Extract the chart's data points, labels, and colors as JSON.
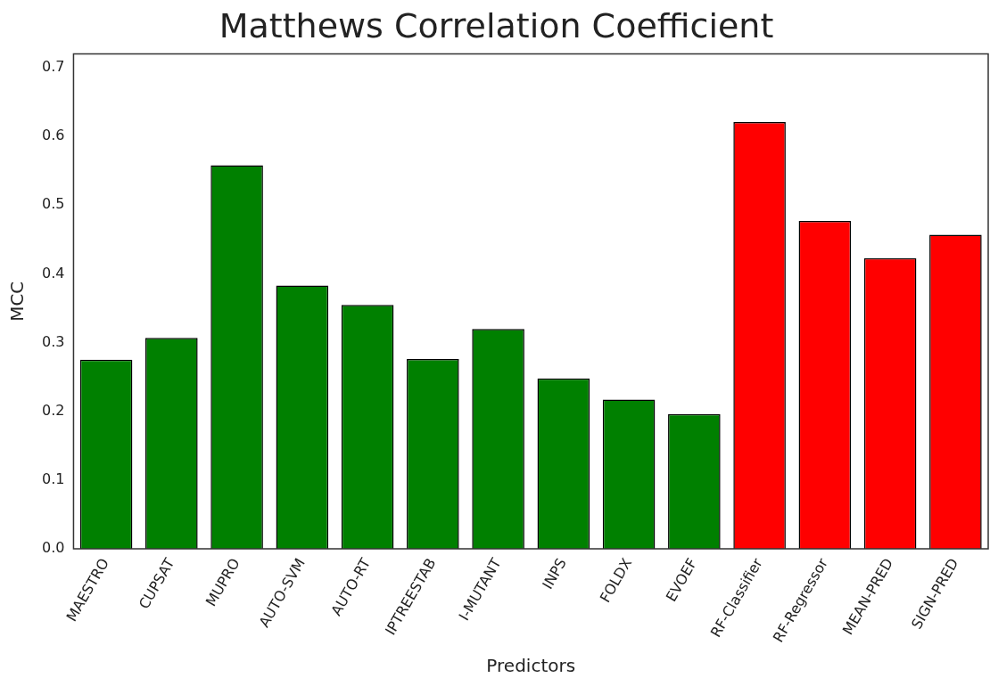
{
  "chart_data": {
    "type": "bar",
    "title": "Matthews Correlation Coefficient",
    "xlabel": "Predictors",
    "ylabel": "MCC",
    "categories": [
      "MAESTRO",
      "CUPSAT",
      "MUPRO",
      "AUTO-SVM",
      "AUTO-RT",
      "IPTREESTAB",
      "I-MUTANT",
      "INPS",
      "FOLDX",
      "EVOEF",
      "RF-Classifier",
      "RF-Regressor",
      "MEAN-PRED",
      "SIGN-PRED"
    ],
    "values": [
      0.275,
      0.307,
      0.558,
      0.383,
      0.355,
      0.276,
      0.32,
      0.248,
      0.217,
      0.196,
      0.621,
      0.477,
      0.423,
      0.457
    ],
    "colors": [
      "#008000",
      "#008000",
      "#008000",
      "#008000",
      "#008000",
      "#008000",
      "#008000",
      "#008000",
      "#008000",
      "#008000",
      "#ff0000",
      "#ff0000",
      "#ff0000",
      "#ff0000"
    ],
    "ylim": [
      0,
      0.72
    ],
    "yticks": [
      {
        "value": 0,
        "label": "0.0"
      },
      0.1,
      0.2,
      0.3,
      0.4,
      0.5,
      0.6,
      0.7
    ],
    "grid": false,
    "legend": false
  }
}
